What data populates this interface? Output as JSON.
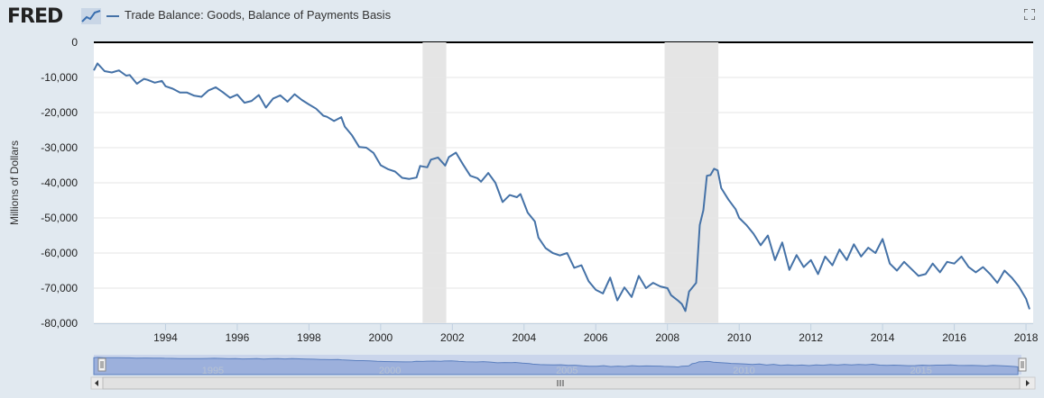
{
  "header": {
    "logo_text": "FRED",
    "logo_icon": "trend-line-icon",
    "fullscreen_icon": "fullscreen-icon"
  },
  "colors": {
    "series": "#4572a7",
    "recession": "#e5e5e5",
    "background": "#e1e9f0",
    "plot": "#ffffff",
    "navigator": "#9cb0dc"
  },
  "chart_data": {
    "type": "line",
    "title": "",
    "xlabel": "",
    "ylabel": "Millions of Dollars",
    "ylim": [
      -80000,
      0
    ],
    "xlim": [
      1992.0,
      2018.2
    ],
    "yticks": [
      0,
      -10000,
      -20000,
      -30000,
      -40000,
      -50000,
      -60000,
      -70000,
      -80000
    ],
    "ytick_labels": [
      "0",
      "-10,000",
      "-20,000",
      "-30,000",
      "-40,000",
      "-50,000",
      "-60,000",
      "-70,000",
      "-80,000"
    ],
    "xticks": [
      1994,
      1996,
      1998,
      2000,
      2002,
      2004,
      2006,
      2008,
      2010,
      2012,
      2014,
      2016,
      2018
    ],
    "xtick_labels": [
      "1994",
      "1996",
      "1998",
      "2000",
      "2002",
      "2004",
      "2006",
      "2008",
      "2010",
      "2012",
      "2014",
      "2016",
      "2018"
    ],
    "grid": true,
    "legend": "top-left",
    "recessions": [
      [
        2001.17,
        2001.83
      ],
      [
        2007.92,
        2009.42
      ]
    ],
    "series": [
      {
        "name": "Trade Balance: Goods, Balance of Payments Basis",
        "x": [
          1992.0,
          1992.1,
          1992.3,
          1992.5,
          1992.7,
          1992.9,
          1993.0,
          1993.2,
          1993.4,
          1993.5,
          1993.7,
          1993.9,
          1994.0,
          1994.2,
          1994.4,
          1994.6,
          1994.8,
          1995.0,
          1995.2,
          1995.4,
          1995.6,
          1995.8,
          1996.0,
          1996.2,
          1996.4,
          1996.6,
          1996.8,
          1997.0,
          1997.2,
          1997.4,
          1997.6,
          1997.8,
          1998.0,
          1998.2,
          1998.4,
          1998.5,
          1998.7,
          1998.9,
          1999.0,
          1999.2,
          1999.4,
          1999.6,
          1999.8,
          2000.0,
          2000.2,
          2000.4,
          2000.6,
          2000.8,
          2001.0,
          2001.1,
          2001.3,
          2001.4,
          2001.6,
          2001.8,
          2001.9,
          2002.1,
          2002.3,
          2002.5,
          2002.7,
          2002.8,
          2003.0,
          2003.2,
          2003.4,
          2003.6,
          2003.8,
          2003.9,
          2004.1,
          2004.3,
          2004.4,
          2004.6,
          2004.8,
          2005.0,
          2005.2,
          2005.4,
          2005.6,
          2005.8,
          2006.0,
          2006.2,
          2006.4,
          2006.6,
          2006.8,
          2007.0,
          2007.2,
          2007.4,
          2007.6,
          2007.8,
          2008.0,
          2008.1,
          2008.3,
          2008.4,
          2008.5,
          2008.6,
          2008.8,
          2008.9,
          2009.0,
          2009.1,
          2009.2,
          2009.3,
          2009.4,
          2009.5,
          2009.7,
          2009.9,
          2010.0,
          2010.2,
          2010.4,
          2010.6,
          2010.8,
          2011.0,
          2011.2,
          2011.4,
          2011.6,
          2011.8,
          2012.0,
          2012.2,
          2012.4,
          2012.6,
          2012.8,
          2013.0,
          2013.2,
          2013.4,
          2013.6,
          2013.8,
          2014.0,
          2014.2,
          2014.4,
          2014.6,
          2014.8,
          2015.0,
          2015.2,
          2015.4,
          2015.6,
          2015.8,
          2016.0,
          2016.2,
          2016.4,
          2016.6,
          2016.8,
          2017.0,
          2017.2,
          2017.4,
          2017.6,
          2017.8,
          2018.0,
          2018.1
        ],
        "values": [
          -8000,
          -6000,
          -8200,
          -8600,
          -8000,
          -9500,
          -9300,
          -11800,
          -10400,
          -10700,
          -11500,
          -11000,
          -12500,
          -13200,
          -14300,
          -14300,
          -15200,
          -15500,
          -13700,
          -12800,
          -14200,
          -15800,
          -14900,
          -17200,
          -16700,
          -15000,
          -18600,
          -16000,
          -15100,
          -16900,
          -14800,
          -16400,
          -17700,
          -18900,
          -20900,
          -21200,
          -22400,
          -21300,
          -24000,
          -26500,
          -29800,
          -30000,
          -31500,
          -35000,
          -36100,
          -36800,
          -38600,
          -38900,
          -38500,
          -35200,
          -35600,
          -33400,
          -32800,
          -35100,
          -32700,
          -31400,
          -34800,
          -38000,
          -38700,
          -39700,
          -37200,
          -40000,
          -45500,
          -43500,
          -44100,
          -43200,
          -48500,
          -51000,
          -55600,
          -58600,
          -60000,
          -60700,
          -60000,
          -64200,
          -63500,
          -68000,
          -70500,
          -71500,
          -67000,
          -73500,
          -69800,
          -72500,
          -66500,
          -70000,
          -68500,
          -69500,
          -70000,
          -72000,
          -73600,
          -74500,
          -76500,
          -71000,
          -68500,
          -52000,
          -47800,
          -38000,
          -37800,
          -36000,
          -36500,
          -41500,
          -44800,
          -47500,
          -50000,
          -52000,
          -54500,
          -57800,
          -55000,
          -62000,
          -57000,
          -64800,
          -60600,
          -64000,
          -62000,
          -66000,
          -61000,
          -63500,
          -59000,
          -62000,
          -57500,
          -61000,
          -58500,
          -60000,
          -56000,
          -63000,
          -65000,
          -62500,
          -64500,
          -66500,
          -66000,
          -63000,
          -65500,
          -62500,
          -63000,
          -61000,
          -64000,
          -65500,
          -64000,
          -66000,
          -68500,
          -65000,
          -67000,
          -69500,
          -73000,
          -76000
        ]
      }
    ],
    "navigator_xtick_labels": [
      "1995",
      "2000",
      "2005",
      "2010",
      "2015"
    ]
  }
}
